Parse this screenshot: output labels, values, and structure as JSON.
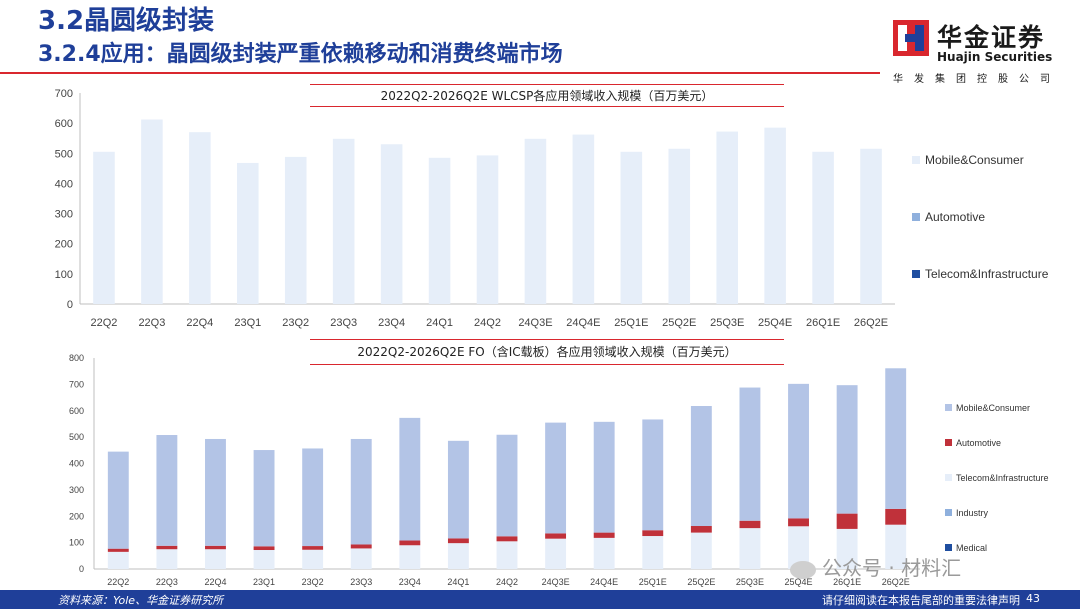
{
  "header": {
    "section": "3.2晶圆级封装",
    "subtitle": "3.2.4应用：晶圆级封装严重依赖移动和消费终端市场"
  },
  "logo": {
    "cn": "华金证券",
    "en": "Huajin Securities",
    "sub": "华发集团控股公司"
  },
  "footer": {
    "source": "资料来源：Yole、华金证券研究所",
    "disclaimer": "请仔细阅读在本报告尾部的重要法律声明",
    "page": "43"
  },
  "watermark": "公众号 · 材料汇",
  "colors": {
    "accent": "#1f3f99",
    "red": "#d9272e",
    "mobile1": "#e6eef9",
    "mobile2": "#b3c4e6",
    "automotive1": "#8fb0dd",
    "automotive2": "#c0313a",
    "telecom1": "#1f4ea0",
    "telecom2": "#e6eef9",
    "industry2": "#8fb0dd",
    "medical2": "#1f4ea0"
  },
  "chart_data": [
    {
      "type": "bar",
      "title": "2022Q2-2026Q2E WLCSP各应用领域收入规模（百万美元）",
      "categories": [
        "22Q2",
        "22Q3",
        "22Q4",
        "23Q1",
        "23Q2",
        "23Q3",
        "23Q4",
        "24Q1",
        "24Q2",
        "24Q3E",
        "24Q4E",
        "25Q1E",
        "25Q2E",
        "25Q3E",
        "25Q4E",
        "26Q1E",
        "26Q2E"
      ],
      "series": [
        {
          "name": "Mobile&Consumer",
          "values": [
            505,
            612,
            570,
            468,
            488,
            548,
            530,
            485,
            493,
            548,
            562,
            505,
            515,
            572,
            585,
            505,
            515
          ]
        },
        {
          "name": "Automotive",
          "values": [
            0,
            0,
            0,
            0,
            0,
            0,
            0,
            0,
            0,
            0,
            0,
            0,
            0,
            0,
            0,
            0,
            0
          ]
        },
        {
          "name": "Telecom&Infrastructure",
          "values": [
            0,
            0,
            0,
            0,
            0,
            0,
            0,
            0,
            0,
            0,
            0,
            0,
            0,
            0,
            0,
            0,
            0
          ]
        }
      ],
      "yticks": [
        "0",
        "100",
        "200",
        "300",
        "400",
        "500",
        "600",
        "700"
      ],
      "ylim": [
        0,
        700
      ],
      "legend": "right"
    },
    {
      "type": "bar",
      "stacked": true,
      "title": "2022Q2-2026Q2E FO（含IC载板）各应用领域收入规模（百万美元）",
      "categories": [
        "22Q2",
        "22Q3",
        "22Q4",
        "23Q1",
        "23Q2",
        "23Q3",
        "23Q4",
        "24Q1",
        "24Q2",
        "24Q3E",
        "24Q4E",
        "25Q1E",
        "25Q2E",
        "25Q3E",
        "25Q4E",
        "26Q1E",
        "26Q2E"
      ],
      "series": [
        {
          "name": "Medical",
          "values": [
            0,
            0,
            0,
            0,
            0,
            0,
            0,
            0,
            0,
            0,
            0,
            0,
            0,
            0,
            0,
            0,
            0
          ]
        },
        {
          "name": "Industry",
          "values": [
            0,
            0,
            0,
            0,
            0,
            0,
            0,
            0,
            0,
            0,
            0,
            0,
            0,
            0,
            0,
            0,
            0
          ]
        },
        {
          "name": "Telecom&Infrastructure",
          "values": [
            65,
            75,
            75,
            72,
            73,
            78,
            90,
            98,
            105,
            115,
            118,
            125,
            138,
            155,
            162,
            152,
            168
          ]
        },
        {
          "name": "Automotive",
          "values": [
            12,
            13,
            13,
            14,
            14,
            15,
            18,
            18,
            19,
            20,
            20,
            22,
            25,
            28,
            30,
            58,
            60
          ]
        },
        {
          "name": "Mobile&Consumer",
          "values": [
            368,
            420,
            405,
            365,
            370,
            400,
            465,
            370,
            385,
            420,
            420,
            420,
            455,
            505,
            510,
            487,
            533
          ]
        }
      ],
      "yticks": [
        "0",
        "100",
        "200",
        "300",
        "400",
        "500",
        "600",
        "700",
        "800"
      ],
      "ylim": [
        0,
        800
      ],
      "legend": "right"
    }
  ]
}
